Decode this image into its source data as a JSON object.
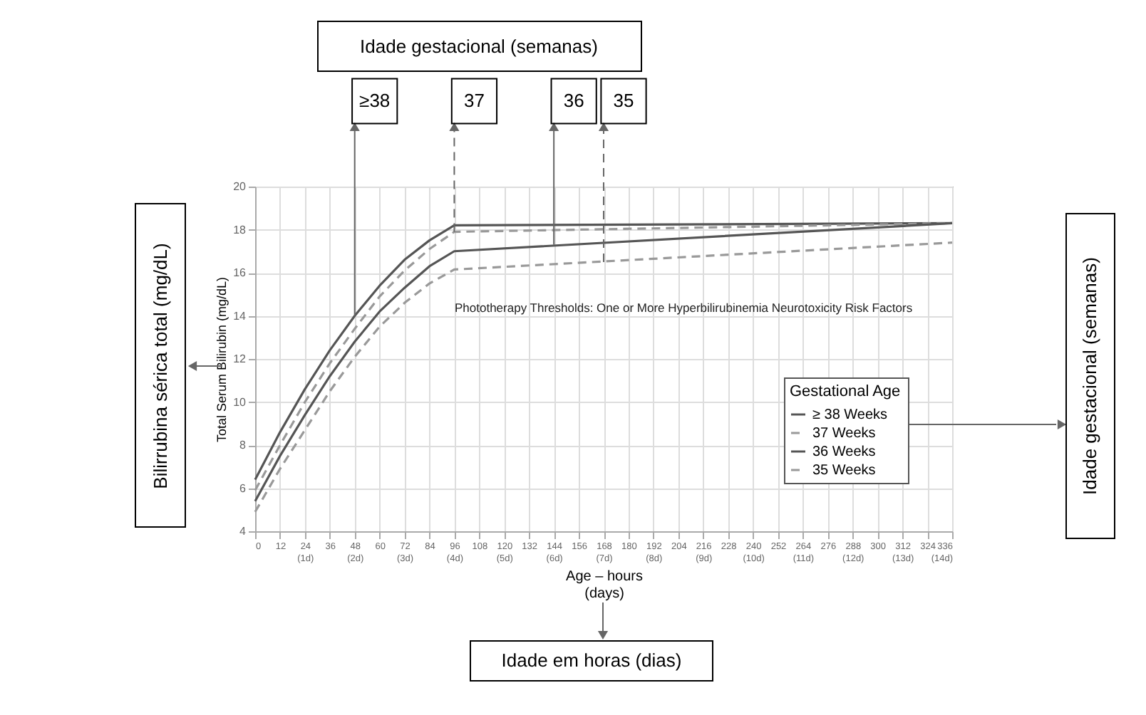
{
  "chart_data": {
    "type": "line",
    "xlabel": "Age – hours\n(days)",
    "ylabel": "Total Serum Bilirubin (mg/dL)",
    "legend_title": "Gestational Age",
    "legend": "bottom right",
    "grid": true,
    "xlim": [
      0,
      336
    ],
    "ylim": [
      4,
      20
    ],
    "yticks": [
      4,
      6,
      8,
      10,
      12,
      14,
      16,
      18,
      20
    ],
    "xticks": [
      0,
      12,
      {
        "value": 24,
        "label": "24\n(1d)"
      },
      36,
      {
        "value": 48,
        "label": "48\n(2d)"
      },
      60,
      {
        "value": 72,
        "label": "72\n(3d)"
      },
      84,
      {
        "value": 96,
        "label": "96\n(4d)"
      },
      108,
      {
        "value": 120,
        "label": "120\n(5d)"
      },
      132,
      {
        "value": 144,
        "label": "144\n(6d)"
      },
      156,
      {
        "value": 168,
        "label": "168\n(7d)"
      },
      180,
      {
        "value": 192,
        "label": "192\n(8d)"
      },
      204,
      {
        "value": 216,
        "label": "216\n(9d)"
      },
      228,
      {
        "value": 240,
        "label": "240\n(10d)"
      },
      252,
      {
        "value": 264,
        "label": "264\n(11d)"
      },
      276,
      {
        "value": 288,
        "label": "288\n(12d)"
      },
      300,
      {
        "value": 312,
        "label": "312\n(13d)"
      },
      324,
      {
        "value": 336,
        "label": "336\n(14d)"
      }
    ],
    "series": [
      {
        "name": "≥ 38 Weeks",
        "color": "#555555",
        "line_style": "solid",
        "x": [
          0,
          12,
          24,
          36,
          48,
          60,
          72,
          84,
          96,
          336
        ],
        "values": [
          6.4,
          8.6,
          10.6,
          12.4,
          14.0,
          15.4,
          16.6,
          17.5,
          18.2,
          18.3
        ]
      },
      {
        "name": "37 Weeks",
        "color": "#999999",
        "line_style": "dashed",
        "x": [
          0,
          12,
          24,
          36,
          48,
          60,
          72,
          84,
          96,
          336
        ],
        "values": [
          5.9,
          8.0,
          10.0,
          11.8,
          13.4,
          14.9,
          16.1,
          17.1,
          17.9,
          18.3
        ]
      },
      {
        "name": "36 Weeks",
        "color": "#555555",
        "line_style": "solid",
        "x": [
          0,
          12,
          24,
          36,
          48,
          60,
          72,
          84,
          96,
          336
        ],
        "values": [
          5.4,
          7.5,
          9.4,
          11.2,
          12.8,
          14.2,
          15.3,
          16.3,
          17.0,
          18.3
        ]
      },
      {
        "name": "35 Weeks",
        "color": "#999999",
        "line_style": "dashed",
        "x": [
          0,
          12,
          24,
          36,
          48,
          60,
          72,
          84,
          96,
          336
        ],
        "values": [
          4.9,
          6.9,
          8.7,
          10.5,
          12.1,
          13.5,
          14.6,
          15.5,
          16.15,
          17.4
        ]
      }
    ],
    "annotations": [
      "Idade gestacional (semanas)",
      {
        "text": "≥38",
        "x": 48,
        "y": 14.0
      },
      {
        "text": "37",
        "x": 96,
        "y": 17.9
      },
      {
        "text": "36",
        "x": 144,
        "y": 17.3
      },
      {
        "text": "35",
        "x": 168,
        "y": 16.5
      },
      "Phototherapy Thresholds: One or More Hyperbilirubinemia Neurotoxicity Risk Factors",
      "Bilirrubina sérica total (mg/dL)",
      "Idade gestacional (semanas)",
      "Idade em horas (dias)"
    ]
  }
}
